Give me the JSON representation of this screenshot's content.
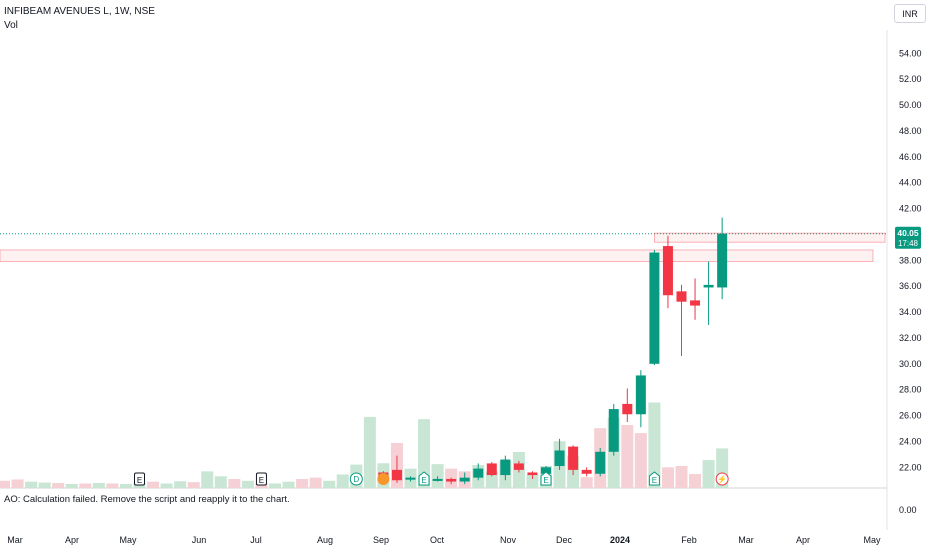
{
  "header": {
    "title": "INFIBEAM AVENUES L, 1W, NSE",
    "volume_label": "Vol",
    "currency": "INR"
  },
  "price_badge": {
    "price": "40.05",
    "countdown": "17:48"
  },
  "indicator": {
    "message": "AO: Calculation failed. Remove the script and reapply it to the chart.",
    "zero_label": "0.00"
  },
  "colors": {
    "up": "#089981",
    "down": "#f23645",
    "up_vol": "#c8e6d3",
    "down_vol": "#f5d0d4"
  },
  "chart_data": {
    "type": "candlestick",
    "y_axis": {
      "ylim": [
        20.4,
        55.8
      ],
      "ticks": [
        "54.00",
        "52.00",
        "50.00",
        "48.00",
        "46.00",
        "44.00",
        "42.00",
        "40.00",
        "38.00",
        "36.00",
        "34.00",
        "32.00",
        "30.00",
        "28.00",
        "26.00",
        "24.00",
        "22.00"
      ]
    },
    "x_axis": {
      "labels": [
        "Mar",
        "Apr",
        "May",
        "Jun",
        "Jul",
        "Aug",
        "Sep",
        "Oct",
        "Nov",
        "Dec",
        "2024",
        "Feb",
        "Mar",
        "Apr",
        "May"
      ]
    },
    "candles": [
      {
        "x": 28,
        "o": 21.6,
        "h": 21.7,
        "l": 21.0,
        "c": 21.2
      },
      {
        "x": 29,
        "o": 21.8,
        "h": 22.9,
        "l": 20.8,
        "c": 21.0
      },
      {
        "x": 30,
        "o": 21.1,
        "h": 21.3,
        "l": 20.9,
        "c": 21.2
      },
      {
        "x": 31,
        "o": 21.2,
        "h": 21.4,
        "l": 20.9,
        "c": 21.0
      },
      {
        "x": 32,
        "o": 21.0,
        "h": 21.3,
        "l": 20.9,
        "c": 21.1
      },
      {
        "x": 33,
        "o": 21.1,
        "h": 21.2,
        "l": 20.7,
        "c": 20.9
      },
      {
        "x": 34,
        "o": 20.9,
        "h": 21.6,
        "l": 20.7,
        "c": 21.2
      },
      {
        "x": 35,
        "o": 21.2,
        "h": 22.3,
        "l": 21.0,
        "c": 21.9
      },
      {
        "x": 36,
        "o": 22.3,
        "h": 22.4,
        "l": 21.3,
        "c": 21.4
      },
      {
        "x": 37,
        "o": 21.4,
        "h": 22.9,
        "l": 21.0,
        "c": 22.6
      },
      {
        "x": 38,
        "o": 22.3,
        "h": 22.5,
        "l": 21.6,
        "c": 21.8
      },
      {
        "x": 39,
        "o": 21.6,
        "h": 21.7,
        "l": 21.1,
        "c": 21.4
      },
      {
        "x": 40,
        "o": 21.5,
        "h": 22.1,
        "l": 21.3,
        "c": 22.0
      },
      {
        "x": 41,
        "o": 22.1,
        "h": 24.2,
        "l": 21.8,
        "c": 23.3
      },
      {
        "x": 42,
        "o": 23.6,
        "h": 23.7,
        "l": 21.4,
        "c": 21.8
      },
      {
        "x": 43,
        "o": 21.8,
        "h": 22.0,
        "l": 21.3,
        "c": 21.5
      },
      {
        "x": 44,
        "o": 21.5,
        "h": 23.5,
        "l": 21.3,
        "c": 23.2
      },
      {
        "x": 45,
        "o": 23.2,
        "h": 26.9,
        "l": 22.9,
        "c": 26.5
      },
      {
        "x": 46,
        "o": 26.9,
        "h": 28.1,
        "l": 25.5,
        "c": 26.1
      },
      {
        "x": 47,
        "o": 26.1,
        "h": 29.5,
        "l": 25.1,
        "c": 29.1
      },
      {
        "x": 48,
        "o": 30.0,
        "h": 38.8,
        "l": 29.9,
        "c": 38.6
      },
      {
        "x": 49,
        "o": 39.1,
        "h": 39.9,
        "l": 34.3,
        "c": 35.3
      },
      {
        "x": 50,
        "o": 35.6,
        "h": 36.1,
        "l": 30.6,
        "c": 34.8
      },
      {
        "x": 51,
        "o": 34.9,
        "h": 36.6,
        "l": 33.4,
        "c": 34.5
      },
      {
        "x": 52,
        "o": 35.9,
        "h": 37.9,
        "l": 33.0,
        "c": 36.1
      },
      {
        "x": 53,
        "o": 35.9,
        "h": 41.3,
        "l": 35.0,
        "c": 40.05
      }
    ],
    "volume": [
      {
        "x": 0,
        "v": 1.6,
        "up": false
      },
      {
        "x": 1,
        "v": 1.9,
        "up": false
      },
      {
        "x": 2,
        "v": 1.4,
        "up": true
      },
      {
        "x": 3,
        "v": 1.2,
        "up": true
      },
      {
        "x": 4,
        "v": 1.1,
        "up": false
      },
      {
        "x": 5,
        "v": 0.9,
        "up": true
      },
      {
        "x": 6,
        "v": 1.0,
        "up": false
      },
      {
        "x": 7,
        "v": 1.1,
        "up": true
      },
      {
        "x": 8,
        "v": 1.0,
        "up": false
      },
      {
        "x": 9,
        "v": 0.9,
        "up": true
      },
      {
        "x": 10,
        "v": 1.2,
        "up": true
      },
      {
        "x": 11,
        "v": 1.4,
        "up": false
      },
      {
        "x": 12,
        "v": 1.0,
        "up": true
      },
      {
        "x": 13,
        "v": 1.5,
        "up": true
      },
      {
        "x": 14,
        "v": 1.3,
        "up": false
      },
      {
        "x": 15,
        "v": 3.7,
        "up": true
      },
      {
        "x": 16,
        "v": 2.6,
        "up": true
      },
      {
        "x": 17,
        "v": 2.0,
        "up": false
      },
      {
        "x": 18,
        "v": 1.6,
        "up": true
      },
      {
        "x": 19,
        "v": 1.1,
        "up": false
      },
      {
        "x": 20,
        "v": 1.0,
        "up": true
      },
      {
        "x": 21,
        "v": 1.4,
        "up": true
      },
      {
        "x": 22,
        "v": 2.0,
        "up": false
      },
      {
        "x": 23,
        "v": 2.3,
        "up": false
      },
      {
        "x": 24,
        "v": 1.6,
        "up": true
      },
      {
        "x": 25,
        "v": 3.0,
        "up": true
      },
      {
        "x": 26,
        "v": 5.2,
        "up": true
      },
      {
        "x": 27,
        "v": 15.8,
        "up": true
      },
      {
        "x": 28,
        "v": 5.5,
        "up": true
      },
      {
        "x": 29,
        "v": 10.0,
        "up": false
      },
      {
        "x": 30,
        "v": 4.3,
        "up": true
      },
      {
        "x": 31,
        "v": 15.3,
        "up": true
      },
      {
        "x": 32,
        "v": 5.3,
        "up": true
      },
      {
        "x": 33,
        "v": 4.3,
        "up": false
      },
      {
        "x": 34,
        "v": 3.7,
        "up": false
      },
      {
        "x": 35,
        "v": 5.1,
        "up": true
      },
      {
        "x": 36,
        "v": 3.7,
        "up": true
      },
      {
        "x": 37,
        "v": 6.1,
        "up": true
      },
      {
        "x": 38,
        "v": 8.0,
        "up": true
      },
      {
        "x": 39,
        "v": 2.9,
        "up": true
      },
      {
        "x": 40,
        "v": 4.9,
        "up": true
      },
      {
        "x": 41,
        "v": 10.4,
        "up": true
      },
      {
        "x": 42,
        "v": 7.2,
        "up": true
      },
      {
        "x": 43,
        "v": 2.4,
        "up": false
      },
      {
        "x": 44,
        "v": 13.3,
        "up": false
      },
      {
        "x": 45,
        "v": 15.6,
        "up": true
      },
      {
        "x": 46,
        "v": 14.0,
        "up": false
      },
      {
        "x": 47,
        "v": 12.2,
        "up": false
      },
      {
        "x": 48,
        "v": 19.0,
        "up": true
      },
      {
        "x": 49,
        "v": 4.6,
        "up": false
      },
      {
        "x": 50,
        "v": 4.9,
        "up": false
      },
      {
        "x": 51,
        "v": 3.1,
        "up": false
      },
      {
        "x": 52,
        "v": 6.2,
        "up": true
      },
      {
        "x": 53,
        "v": 8.8,
        "up": true
      }
    ],
    "levels": [
      {
        "name": "last-price",
        "y": 40.05
      },
      {
        "name": "zone-upper",
        "top": 40.1,
        "bottom": 39.4
      },
      {
        "name": "zone-lower",
        "top": 38.8,
        "bottom": 37.9
      }
    ],
    "markers": [
      {
        "x": 10,
        "type": "earnings",
        "label": "E"
      },
      {
        "x": 19,
        "type": "earnings",
        "label": "E"
      },
      {
        "x": 26,
        "type": "dividend",
        "label": "D"
      },
      {
        "x": 28,
        "type": "event",
        "label": ""
      },
      {
        "x": 31,
        "type": "earnings-up",
        "label": "E"
      },
      {
        "x": 40,
        "type": "earnings-up",
        "label": "E"
      },
      {
        "x": 48,
        "type": "earnings-up",
        "label": "E"
      },
      {
        "x": 53,
        "type": "flash",
        "label": "⚡"
      }
    ]
  }
}
